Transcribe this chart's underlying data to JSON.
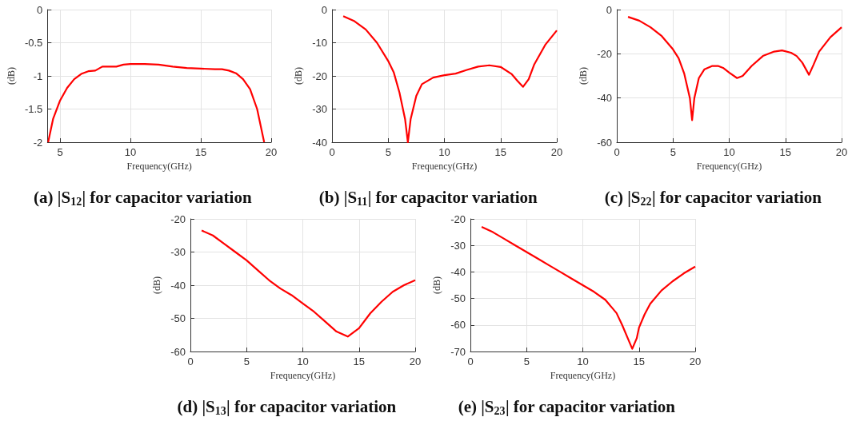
{
  "chart_data": [
    {
      "type": "line",
      "title": "(a) |S$_{12}$| for capacitor variation",
      "xlabel": "Frequency(GHz)",
      "ylabel": "(dB)",
      "grid": true,
      "xlim": [
        4.1,
        20
      ],
      "xticks": [
        5,
        10,
        15,
        20
      ],
      "ylim": [
        -2,
        0
      ],
      "yticks": [
        -2,
        -1.5,
        -1,
        -0.5,
        0
      ],
      "series": [
        {
          "color": "#ff0000",
          "x": [
            4.15,
            4.5,
            5,
            5.5,
            6,
            6.5,
            7,
            7.5,
            8,
            9,
            9.5,
            10,
            11,
            12,
            13,
            14,
            15,
            16,
            16.5,
            17,
            17.5,
            18,
            18.5,
            19,
            19.5
          ],
          "values": [
            -2,
            -1.65,
            -1.37,
            -1.18,
            -1.05,
            -0.97,
            -0.93,
            -0.92,
            -0.86,
            -0.86,
            -0.83,
            -0.82,
            -0.82,
            -0.83,
            -0.86,
            -0.88,
            -0.89,
            -0.9,
            -0.9,
            -0.92,
            -0.96,
            -1.05,
            -1.2,
            -1.5,
            -2
          ]
        }
      ]
    },
    {
      "type": "line",
      "title": "(b) |S$_{11}$| for capacitor variation",
      "xlabel": "Frequency(GHz)",
      "ylabel": "(dB)",
      "grid": true,
      "xlim": [
        0,
        20
      ],
      "xticks": [
        0,
        5,
        10,
        15,
        20
      ],
      "ylim": [
        -40,
        0
      ],
      "yticks": [
        -40,
        -30,
        -20,
        -10,
        0
      ],
      "series": [
        {
          "color": "#ff0000",
          "x": [
            1,
            2,
            3,
            4,
            5,
            5.5,
            6,
            6.5,
            6.75,
            7,
            7.5,
            8,
            9,
            10,
            11,
            12,
            13,
            14,
            15,
            16,
            16.5,
            17,
            17.5,
            18,
            19,
            20
          ],
          "values": [
            -2,
            -3.5,
            -6,
            -10,
            -15.5,
            -19,
            -25,
            -33,
            -40,
            -33,
            -26,
            -22.5,
            -20.5,
            -19.8,
            -19.3,
            -18.2,
            -17.2,
            -16.8,
            -17.3,
            -19.5,
            -21.5,
            -23.3,
            -21,
            -16.5,
            -10.5,
            -6.3
          ]
        }
      ]
    },
    {
      "type": "line",
      "title": "(c) |S$_{22}$| for capacitor variation",
      "xlabel": "Frequency(GHz)",
      "ylabel": "(dB)",
      "grid": true,
      "xlim": [
        0,
        20
      ],
      "xticks": [
        0,
        5,
        10,
        15,
        20
      ],
      "ylim": [
        -60,
        0
      ],
      "yticks": [
        -60,
        -40,
        -20,
        0
      ],
      "series": [
        {
          "color": "#ff0000",
          "x": [
            1,
            2,
            3,
            4,
            5,
            5.5,
            6,
            6.5,
            6.7,
            6.9,
            7.3,
            7.8,
            8.5,
            9,
            9.5,
            10,
            10.7,
            11.2,
            12,
            13,
            14,
            14.7,
            15.5,
            16,
            16.5,
            17.1,
            17.5,
            18,
            19,
            20
          ],
          "values": [
            -3.3,
            -5,
            -8,
            -12,
            -18,
            -22,
            -29,
            -40,
            -50,
            -40,
            -31,
            -27,
            -25.5,
            -25.5,
            -26.5,
            -28.5,
            -31,
            -30,
            -25.5,
            -21,
            -19,
            -18.5,
            -19.5,
            -21,
            -24,
            -29.5,
            -25,
            -19,
            -12.5,
            -8
          ]
        }
      ]
    },
    {
      "type": "line",
      "title": "(d) |S$_{13}$| for capacitor variation",
      "xlabel": "Frequency(GHz)",
      "ylabel": "(dB)",
      "grid": true,
      "xlim": [
        0,
        20
      ],
      "xticks": [
        0,
        5,
        10,
        15,
        20
      ],
      "ylim": [
        -60,
        -20
      ],
      "yticks": [
        -60,
        -50,
        -40,
        -30,
        -20
      ],
      "series": [
        {
          "color": "#ff0000",
          "x": [
            1,
            2,
            3,
            4,
            5,
            6,
            7,
            8,
            9,
            10,
            11,
            12,
            13,
            14,
            15,
            16,
            17,
            18,
            19,
            20
          ],
          "values": [
            -23.5,
            -25,
            -27.5,
            -30,
            -32.5,
            -35.5,
            -38.5,
            -41,
            -43,
            -45.5,
            -48,
            -51,
            -54,
            -55.5,
            -53,
            -48.5,
            -45,
            -42,
            -40,
            -38.5
          ]
        }
      ]
    },
    {
      "type": "line",
      "title": "(e) |S$_{23}$| for capacitor variation",
      "xlabel": "Frequency(GHz)",
      "ylabel": "(dB)",
      "grid": true,
      "xlim": [
        0,
        20
      ],
      "xticks": [
        0,
        5,
        10,
        15,
        20
      ],
      "ylim": [
        -70,
        -20
      ],
      "yticks": [
        -70,
        -60,
        -50,
        -40,
        -30,
        -20
      ],
      "series": [
        {
          "color": "#ff0000",
          "x": [
            1,
            2,
            3,
            4,
            5,
            6,
            7,
            8,
            9,
            10,
            11,
            12,
            13,
            13.5,
            14,
            14.4,
            14.8,
            15,
            15.5,
            16,
            17,
            18,
            19,
            20
          ],
          "values": [
            -23,
            -25,
            -27.5,
            -30,
            -32.5,
            -35,
            -37.5,
            -40,
            -42.5,
            -45,
            -47.5,
            -50.5,
            -55.5,
            -60,
            -65,
            -69,
            -65,
            -61,
            -56,
            -52,
            -47,
            -43.5,
            -40.5,
            -38
          ]
        }
      ]
    }
  ]
}
